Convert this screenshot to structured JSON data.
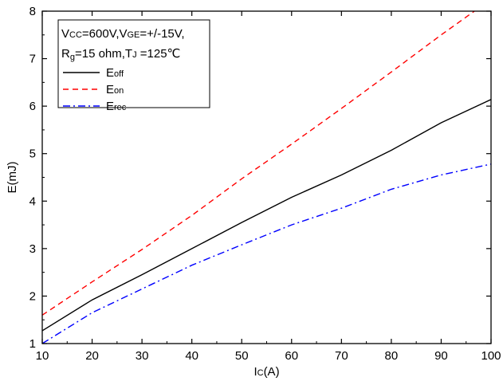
{
  "chart_data": {
    "type": "line",
    "xlabel": {
      "main": "I",
      "sub": "C",
      "rest": "(A)"
    },
    "ylabel": "E(mJ)",
    "xlim": [
      10,
      100
    ],
    "ylim": [
      1,
      8
    ],
    "xticks": [
      10,
      20,
      30,
      40,
      50,
      60,
      70,
      80,
      90,
      100
    ],
    "yticks": [
      1,
      2,
      3,
      4,
      5,
      6,
      7,
      8
    ],
    "grid": false,
    "legend_position": "top-left",
    "conditions": {
      "line1": {
        "a": "V",
        "a_sub": "CC",
        "b": "=600V,V",
        "b_sub": "GE",
        "c": "=+/-15V,"
      },
      "line2": {
        "a": "R",
        "a_sub": "g",
        "b": "=15 ohm,T",
        "b_sub": "J",
        "c": " =125℃"
      }
    },
    "series": [
      {
        "name": "Eoff",
        "name_main": "E",
        "name_sub": "off",
        "color": "#000000",
        "dash": "solid",
        "x": [
          10,
          20,
          30,
          40,
          50,
          60,
          70,
          80,
          90,
          100
        ],
        "y": [
          1.27,
          1.92,
          2.45,
          3.0,
          3.55,
          4.08,
          4.55,
          5.07,
          5.65,
          6.14
        ]
      },
      {
        "name": "Eon",
        "name_main": "E",
        "name_sub": "on",
        "color": "#ff0000",
        "dash": "dashed",
        "x": [
          10,
          20,
          30,
          40,
          50,
          60,
          70,
          80,
          90,
          100
        ],
        "y": [
          1.6,
          2.3,
          2.98,
          3.7,
          4.47,
          5.2,
          5.95,
          6.72,
          7.5,
          8.25
        ]
      },
      {
        "name": "Erec",
        "name_main": "E",
        "name_sub": "rec",
        "color": "#0000ff",
        "dash": "dashdot",
        "x": [
          10,
          20,
          30,
          40,
          50,
          60,
          70,
          80,
          90,
          100
        ],
        "y": [
          1.0,
          1.65,
          2.15,
          2.65,
          3.08,
          3.5,
          3.85,
          4.25,
          4.55,
          4.78
        ]
      }
    ]
  }
}
